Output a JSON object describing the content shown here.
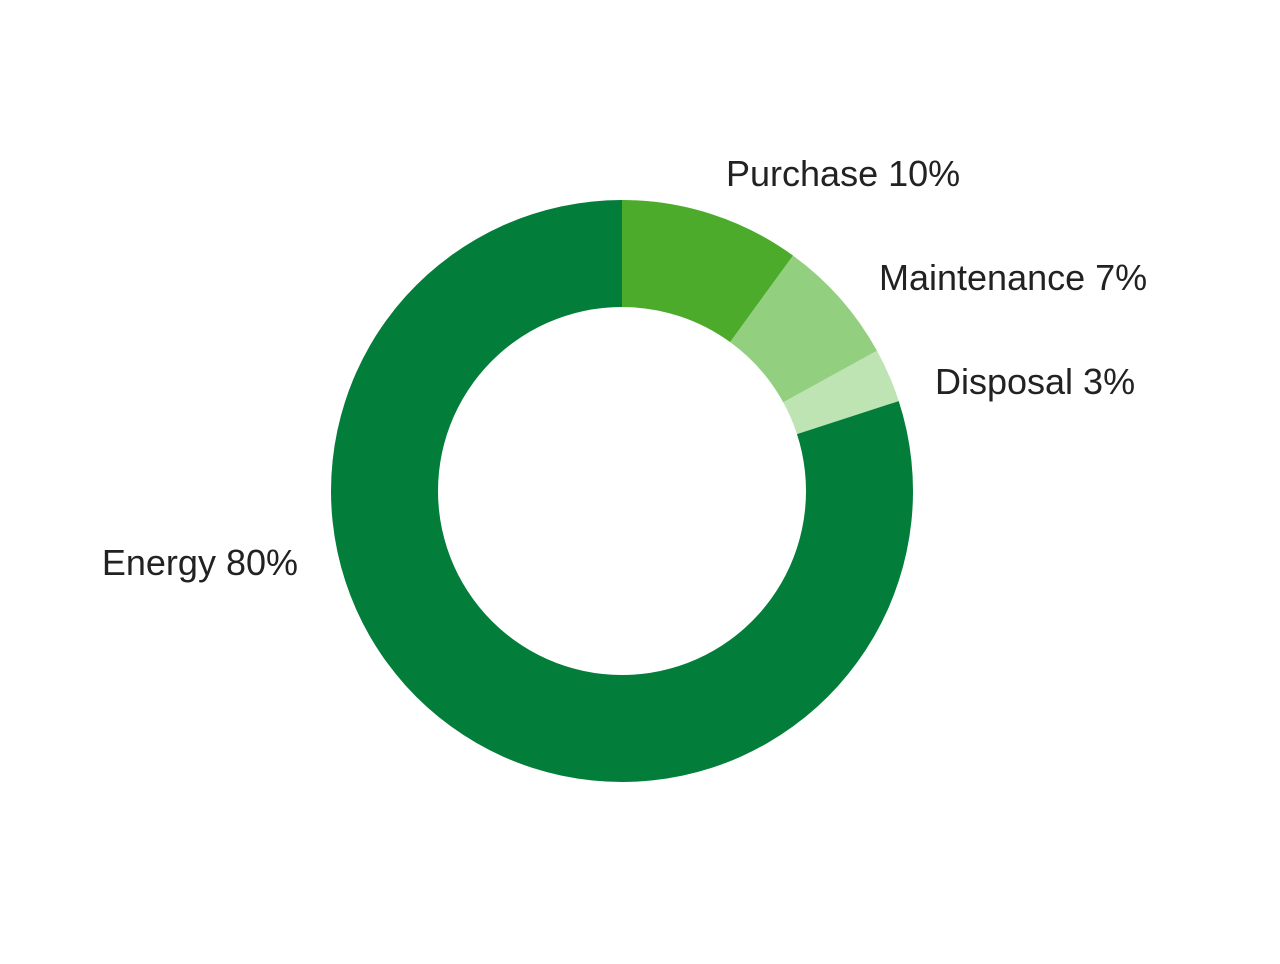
{
  "chart_data": {
    "type": "pie",
    "variant": "donut",
    "slices": [
      {
        "label": "Purchase",
        "value": 10,
        "label_text": "Purchase 10%",
        "color": "#4cab2a"
      },
      {
        "label": "Maintenance",
        "value": 7,
        "label_text": "Maintenance 7%",
        "color": "#92cf7e"
      },
      {
        "label": "Disposal",
        "value": 3,
        "label_text": "Disposal 3%",
        "color": "#bfe4b4"
      },
      {
        "label": "Energy",
        "value": 80,
        "label_text": "Energy 80%",
        "color": "#027d3a"
      }
    ],
    "unit": "%",
    "legend": "none",
    "start_angle": "12 o'clock",
    "direction": "clockwise"
  }
}
